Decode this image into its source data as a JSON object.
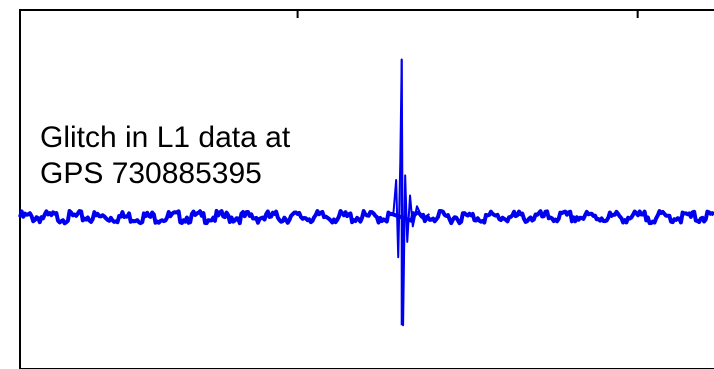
{
  "chart_data": {
    "type": "line",
    "title": "",
    "xlabel": "",
    "ylabel": "",
    "grid": false,
    "annotation_lines": [
      "Glitch in L1 data at",
      "GPS 730885395"
    ],
    "series": [
      {
        "color": "#0000ee",
        "baseline": 0,
        "noise_amplitude": 0.02,
        "glitch": {
          "x": 0.55,
          "peak_max": 1.0,
          "peak_min": -0.72,
          "ringdown": [
            {
              "x": 0.542,
              "y": 0.22
            },
            {
              "x": 0.545,
              "y": -0.28
            },
            {
              "x": 0.548,
              "y": 0.34
            },
            {
              "x": 0.55,
              "y": 1.0
            },
            {
              "x": 0.552,
              "y": -0.72
            },
            {
              "x": 0.555,
              "y": 0.25
            },
            {
              "x": 0.558,
              "y": -0.18
            },
            {
              "x": 0.562,
              "y": 0.12
            },
            {
              "x": 0.566,
              "y": -0.08
            },
            {
              "x": 0.572,
              "y": 0.05
            },
            {
              "x": 0.58,
              "y": -0.03
            }
          ]
        }
      }
    ],
    "xlim": [
      0,
      1
    ],
    "ylim": [
      -1.1,
      1.1
    ],
    "top_axis_ticks": [
      0.4,
      0.89
    ]
  }
}
